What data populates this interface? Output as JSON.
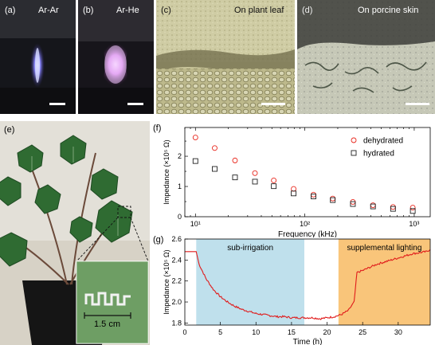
{
  "panels": {
    "a": {
      "letter": "(a)",
      "label": "Ar-Ar"
    },
    "b": {
      "letter": "(b)",
      "label": "Ar-He"
    },
    "c": {
      "letter": "(c)",
      "label": "On plant leaf"
    },
    "d": {
      "letter": "(d)",
      "label": "On porcine skin"
    },
    "e": {
      "letter": "(e)",
      "inset_scale": "1.5 cm"
    },
    "f": {
      "letter": "(f)"
    },
    "g": {
      "letter": "(g)"
    }
  },
  "chart_data": [
    {
      "panel": "(f)",
      "type": "scatter",
      "xlabel": "Frequency (kHz)",
      "ylabel": "Impedance (×10⁵ Ω)",
      "xscale": "log",
      "xlim": [
        8,
        1400
      ],
      "ylim": [
        0,
        2.95
      ],
      "x_tick_labels": [
        "10¹",
        "10²",
        "10³"
      ],
      "y_tick_labels": [
        "0",
        "1",
        "2"
      ],
      "legend_position": "top-right",
      "series": [
        {
          "name": "dehydrated",
          "marker": "circle",
          "color": "#e8261c",
          "x": [
            10,
            15,
            23,
            35,
            52,
            79,
            120,
            180,
            275,
            420,
            640,
            970
          ],
          "y": [
            2.62,
            2.27,
            1.86,
            1.44,
            1.2,
            0.92,
            0.73,
            0.6,
            0.49,
            0.38,
            0.32,
            0.3
          ]
        },
        {
          "name": "hydrated",
          "marker": "square",
          "color": "#222222",
          "x": [
            10,
            15,
            23,
            35,
            52,
            79,
            120,
            180,
            275,
            420,
            640,
            970
          ],
          "y": [
            1.84,
            1.58,
            1.3,
            1.16,
            1.01,
            0.77,
            0.67,
            0.55,
            0.42,
            0.34,
            0.26,
            0.19
          ]
        }
      ]
    },
    {
      "panel": "(g)",
      "type": "line",
      "xlabel": "Time (h)",
      "ylabel": "Impedance (×10⁵ Ω)",
      "xlim": [
        0,
        34.5
      ],
      "ylim": [
        1.78,
        2.6
      ],
      "x_ticks": [
        0,
        5,
        10,
        15,
        20,
        25,
        30
      ],
      "y_ticks": [
        1.8,
        2.0,
        2.2,
        2.4,
        2.6
      ],
      "y_tick_labels": [
        "1.8",
        "2.0",
        "2.2",
        "2.4",
        "2.6"
      ],
      "regions": [
        {
          "label": "sub-irrigation",
          "x": [
            1.6,
            16.8
          ],
          "color": "#bfe0ec"
        },
        {
          "label": "supplemental lighting",
          "x": [
            21.6,
            34.5
          ],
          "color": "#f9c57a"
        }
      ],
      "series": [
        {
          "color": "#e01b1b",
          "x": [
            0,
            1.6,
            2.0,
            3,
            4,
            5,
            6,
            7,
            8,
            9,
            10,
            11,
            12,
            13,
            14,
            15,
            16,
            17,
            18,
            19,
            20,
            21,
            22,
            23,
            23.8,
            24.2,
            25,
            26,
            27,
            28,
            29,
            30,
            31,
            32,
            33,
            34,
            34.5
          ],
          "y": [
            2.48,
            2.48,
            2.36,
            2.22,
            2.12,
            2.05,
            2.0,
            1.96,
            1.93,
            1.91,
            1.89,
            1.88,
            1.87,
            1.86,
            1.86,
            1.85,
            1.85,
            1.85,
            1.85,
            1.84,
            1.85,
            1.86,
            1.88,
            1.92,
            2.0,
            2.28,
            2.3,
            2.33,
            2.36,
            2.38,
            2.4,
            2.42,
            2.44,
            2.46,
            2.47,
            2.48,
            2.5
          ]
        }
      ]
    }
  ]
}
